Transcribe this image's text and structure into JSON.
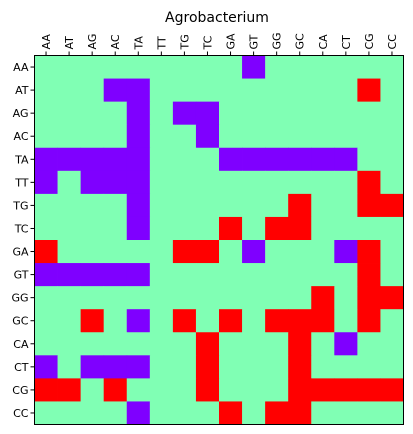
{
  "chart_data": {
    "type": "heatmap",
    "title": "Agrobacterium",
    "x_tick_labels": [
      "AA",
      "AT",
      "AG",
      "AC",
      "TA",
      "TT",
      "TG",
      "TC",
      "GA",
      "GT",
      "GG",
      "GC",
      "CA",
      "CT",
      "CG",
      "CC"
    ],
    "y_tick_labels": [
      "AA",
      "AT",
      "AG",
      "AC",
      "TA",
      "TT",
      "TG",
      "TC",
      "GA",
      "GT",
      "GG",
      "GC",
      "CA",
      "CT",
      "CG",
      "CC"
    ],
    "legend": "none",
    "grid": false,
    "colors": {
      "1": "#7f00ff",
      "2": "#80ffb4",
      "3": "#ff0000"
    },
    "matrix": [
      [
        2,
        2,
        2,
        2,
        2,
        2,
        2,
        2,
        2,
        1,
        2,
        2,
        2,
        2,
        2,
        2
      ],
      [
        2,
        2,
        2,
        1,
        1,
        2,
        2,
        2,
        2,
        2,
        2,
        2,
        2,
        2,
        3,
        2
      ],
      [
        2,
        2,
        2,
        2,
        1,
        2,
        1,
        1,
        2,
        2,
        2,
        2,
        2,
        2,
        2,
        2
      ],
      [
        2,
        2,
        2,
        2,
        1,
        2,
        2,
        1,
        2,
        2,
        2,
        2,
        2,
        2,
        2,
        2
      ],
      [
        1,
        1,
        1,
        1,
        1,
        2,
        2,
        2,
        1,
        1,
        1,
        1,
        1,
        1,
        2,
        2
      ],
      [
        1,
        2,
        1,
        1,
        1,
        2,
        2,
        2,
        2,
        2,
        2,
        2,
        2,
        2,
        3,
        2
      ],
      [
        2,
        2,
        2,
        2,
        1,
        2,
        2,
        2,
        2,
        2,
        2,
        3,
        2,
        2,
        3,
        3
      ],
      [
        2,
        2,
        2,
        2,
        1,
        2,
        2,
        2,
        3,
        2,
        3,
        3,
        2,
        2,
        2,
        2
      ],
      [
        3,
        2,
        2,
        2,
        2,
        2,
        3,
        3,
        2,
        1,
        2,
        2,
        2,
        1,
        3,
        2
      ],
      [
        1,
        1,
        1,
        1,
        1,
        2,
        2,
        2,
        2,
        2,
        2,
        2,
        2,
        2,
        3,
        2
      ],
      [
        2,
        2,
        2,
        2,
        2,
        2,
        2,
        2,
        2,
        2,
        2,
        2,
        3,
        2,
        3,
        3
      ],
      [
        2,
        2,
        3,
        2,
        1,
        2,
        3,
        2,
        3,
        2,
        3,
        3,
        3,
        2,
        3,
        2
      ],
      [
        2,
        2,
        2,
        2,
        2,
        2,
        2,
        3,
        2,
        2,
        2,
        3,
        2,
        1,
        2,
        2
      ],
      [
        1,
        2,
        1,
        1,
        1,
        2,
        2,
        3,
        2,
        2,
        2,
        3,
        2,
        2,
        2,
        2
      ],
      [
        3,
        3,
        2,
        3,
        2,
        2,
        2,
        3,
        2,
        2,
        2,
        3,
        3,
        3,
        3,
        3
      ],
      [
        2,
        2,
        2,
        2,
        1,
        2,
        2,
        2,
        3,
        2,
        3,
        3,
        2,
        2,
        2,
        2
      ]
    ]
  }
}
